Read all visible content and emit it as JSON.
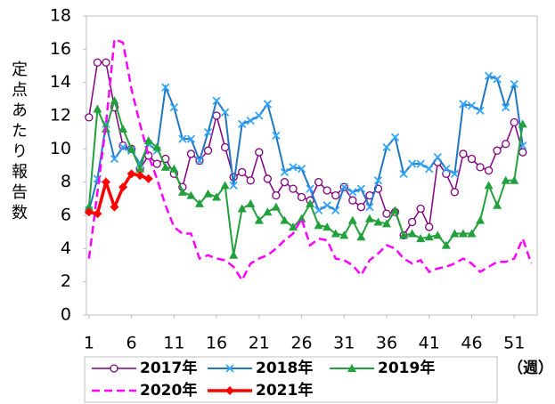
{
  "chart_data": {
    "type": "line",
    "y_label": "定点あたり報告数",
    "x_unit": "（週）",
    "x": [
      1,
      2,
      3,
      4,
      5,
      6,
      7,
      8,
      9,
      10,
      11,
      12,
      13,
      14,
      15,
      16,
      17,
      18,
      19,
      20,
      21,
      22,
      23,
      24,
      25,
      26,
      27,
      28,
      29,
      30,
      31,
      32,
      33,
      34,
      35,
      36,
      37,
      38,
      39,
      40,
      41,
      42,
      43,
      44,
      45,
      46,
      47,
      48,
      49,
      50,
      51,
      52,
      53
    ],
    "xlim": [
      0.7,
      53.7
    ],
    "xticks": [
      1,
      6,
      11,
      16,
      21,
      26,
      31,
      36,
      41,
      46,
      51
    ],
    "ylim": [
      0,
      18
    ],
    "yticks": [
      0,
      2,
      4,
      6,
      8,
      10,
      12,
      14,
      16,
      18
    ],
    "grid": false,
    "legend": "bottom",
    "series": [
      {
        "name": "2017年",
        "color": "#800080",
        "marker": "circle",
        "dash": false,
        "width": 1.5,
        "values": [
          11.9,
          15.2,
          15.2,
          12.5,
          10.2,
          10.0,
          8.8,
          9.6,
          9.1,
          9.4,
          8.5,
          7.7,
          9.7,
          9.3,
          9.9,
          12.0,
          10.1,
          8.3,
          8.6,
          8.1,
          9.8,
          8.2,
          7.2,
          8.0,
          7.6,
          7.1,
          6.9,
          8.0,
          7.5,
          7.2,
          7.7,
          6.9,
          6.5,
          7.2,
          7.6,
          6.1,
          6.2,
          4.8,
          5.6,
          6.4,
          5.3,
          9.2,
          8.5,
          7.4,
          9.7,
          9.4,
          8.9,
          8.7,
          9.9,
          10.3,
          11.6,
          9.8,
          null
        ]
      },
      {
        "name": "2018年",
        "color": "#1f77c4",
        "marker": "x",
        "dash": false,
        "width": 2,
        "values": [
          6.3,
          8.2,
          11.5,
          9.4,
          10.1,
          9.9,
          9.1,
          10.3,
          9.9,
          13.7,
          12.5,
          10.6,
          10.6,
          9.3,
          11.0,
          12.9,
          12.2,
          7.8,
          11.5,
          11.7,
          12.0,
          12.7,
          10.8,
          8.6,
          8.9,
          8.8,
          7.6,
          6.3,
          6.6,
          6.3,
          7.7,
          7.4,
          7.6,
          6.5,
          8.1,
          10.1,
          10.7,
          8.5,
          9.1,
          9.1,
          8.8,
          9.5,
          8.8,
          8.5,
          12.7,
          12.6,
          12.3,
          14.4,
          14.2,
          12.5,
          13.9,
          10.2,
          null
        ]
      },
      {
        "name": "2019年",
        "color": "#22a03c",
        "marker": "triangle",
        "dash": false,
        "width": 2,
        "values": [
          6.5,
          12.4,
          11.2,
          12.9,
          11.2,
          10.0,
          8.8,
          10.5,
          10.1,
          8.9,
          8.8,
          7.4,
          7.2,
          6.7,
          7.3,
          7.1,
          7.8,
          3.6,
          6.4,
          6.7,
          5.7,
          6.2,
          6.5,
          5.7,
          5.3,
          5.8,
          6.7,
          5.4,
          5.3,
          4.9,
          4.8,
          5.7,
          4.7,
          5.8,
          5.6,
          5.5,
          6.3,
          4.8,
          4.9,
          4.6,
          4.7,
          4.8,
          4.2,
          4.9,
          4.9,
          4.9,
          5.7,
          7.8,
          6.6,
          8.1,
          8.1,
          11.5,
          null
        ]
      },
      {
        "name": "2020年",
        "color": "#ff00ff",
        "marker": "none",
        "dash": true,
        "width": 2.5,
        "values": [
          3.4,
          7.4,
          11.5,
          16.6,
          16.4,
          13.6,
          11.5,
          9.6,
          8.2,
          6.6,
          5.3,
          4.9,
          4.9,
          3.4,
          3.6,
          3.4,
          3.3,
          2.9,
          2.1,
          3.1,
          3.4,
          3.6,
          4.0,
          4.5,
          4.9,
          5.8,
          4.2,
          4.6,
          4.5,
          3.4,
          3.3,
          3.0,
          2.4,
          3.3,
          3.7,
          4.2,
          4.0,
          3.4,
          3.1,
          3.3,
          2.6,
          2.8,
          2.9,
          3.1,
          3.4,
          3.1,
          2.6,
          2.9,
          3.2,
          3.2,
          3.4,
          4.6,
          3.1
        ]
      },
      {
        "name": "2021年",
        "color": "#ff0000",
        "marker": "diamond",
        "dash": false,
        "width": 3.5,
        "values": [
          6.2,
          6.1,
          8.0,
          6.5,
          7.7,
          8.5,
          8.4,
          8.2,
          null,
          null,
          null,
          null,
          null,
          null,
          null,
          null,
          null,
          null,
          null,
          null,
          null,
          null,
          null,
          null,
          null,
          null,
          null,
          null,
          null,
          null,
          null,
          null,
          null,
          null,
          null,
          null,
          null,
          null,
          null,
          null,
          null,
          null,
          null,
          null,
          null,
          null,
          null,
          null,
          null,
          null,
          null,
          null,
          null
        ]
      }
    ]
  }
}
